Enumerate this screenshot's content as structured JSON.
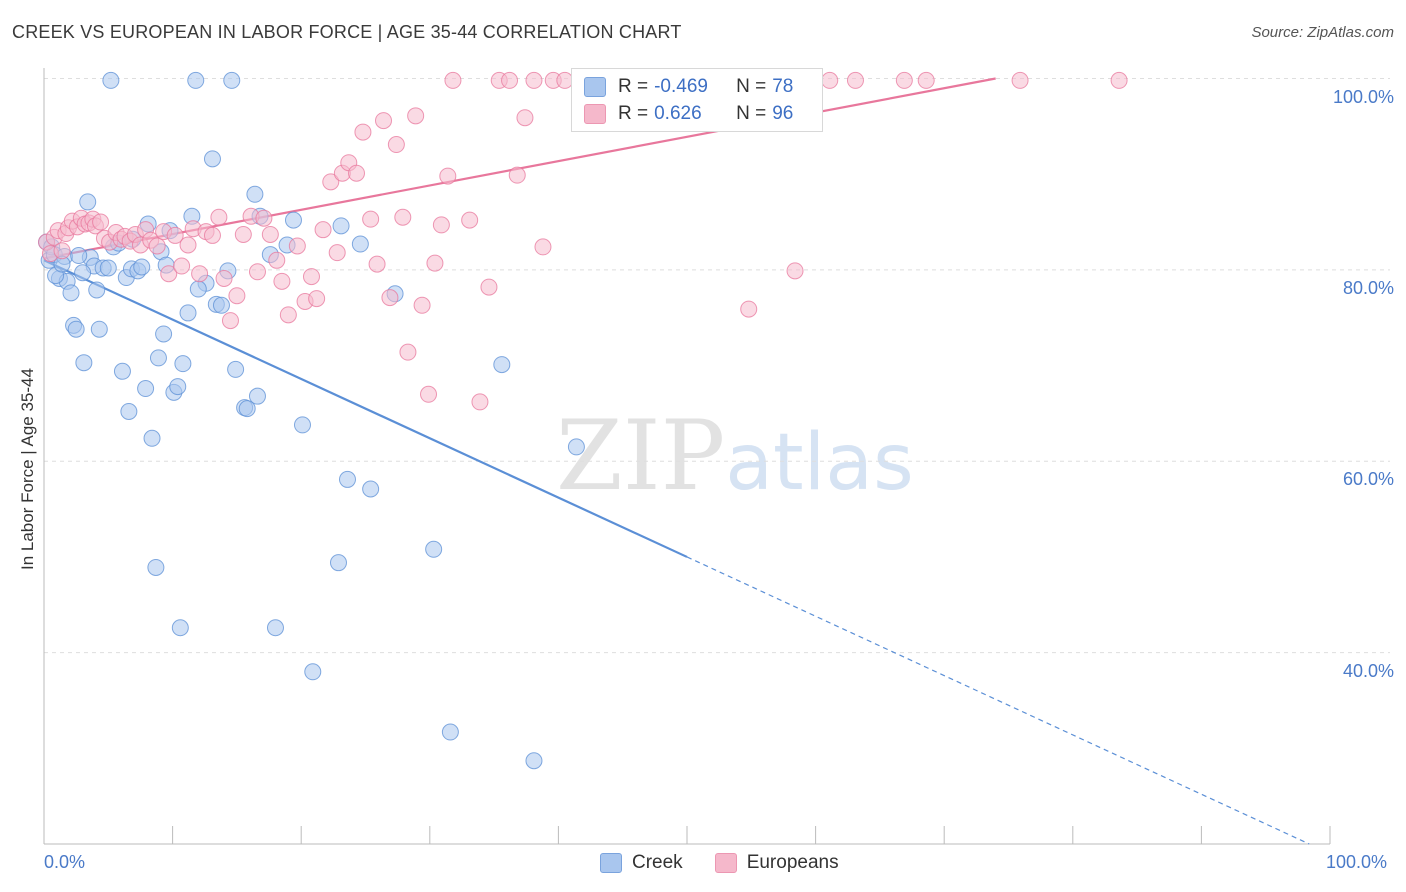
{
  "header": {
    "title": "CREEK VS EUROPEAN IN LABOR FORCE | AGE 35-44 CORRELATION CHART",
    "source": "Source: ZipAtlas.com"
  },
  "watermark": {
    "zip": "ZIP",
    "atlas": "atlas"
  },
  "legend": {
    "creek": {
      "r_label": "R =",
      "r_value": "-0.469",
      "n_label": "N =",
      "n_value": "78",
      "color": "#a9c6ee"
    },
    "europeans": {
      "r_label": "R =",
      "r_value": "0.626",
      "n_label": "N =",
      "n_value": "96",
      "color": "#f5b8cb"
    }
  },
  "bottom_legend": {
    "creek": "Creek",
    "europeans": "Europeans"
  },
  "chart_data": {
    "type": "scatter",
    "ylabel": "In Labor Force | Age 35-44",
    "xlim": [
      0,
      100
    ],
    "ylim": [
      20,
      100
    ],
    "y_ticks": [
      "100.0%",
      "80.0%",
      "60.0%",
      "40.0%"
    ],
    "y_tick_values": [
      100,
      80,
      60,
      40
    ],
    "x_tick_labels": [
      "0.0%",
      "100.0%"
    ],
    "grid": true,
    "series": [
      {
        "name": "Creek",
        "color": "#5b8fd6",
        "fill": "#aac7ef",
        "trend": {
          "x0": 0,
          "y0": 81.0,
          "x1": 100,
          "y1": 19.0,
          "solid_until": 50
        },
        "points": [
          [
            0.2,
            82.9
          ],
          [
            0.4,
            81.0
          ],
          [
            0.6,
            82.4
          ],
          [
            0.8,
            81.6
          ],
          [
            1.2,
            79.1
          ],
          [
            1.6,
            81.4
          ],
          [
            1.8,
            78.8
          ],
          [
            2.1,
            77.6
          ],
          [
            2.3,
            74.2
          ],
          [
            2.5,
            73.8
          ],
          [
            3.1,
            70.3
          ],
          [
            3.4,
            87.1
          ],
          [
            3.6,
            81.3
          ],
          [
            3.9,
            80.4
          ],
          [
            4.1,
            77.9
          ],
          [
            4.3,
            73.8
          ],
          [
            4.6,
            80.2
          ],
          [
            5.2,
            99.8
          ],
          [
            5.4,
            82.4
          ],
          [
            5.8,
            82.8
          ],
          [
            6.1,
            69.4
          ],
          [
            6.4,
            79.2
          ],
          [
            6.6,
            65.2
          ],
          [
            6.8,
            80.1
          ],
          [
            7.3,
            79.9
          ],
          [
            7.6,
            80.3
          ],
          [
            7.9,
            67.6
          ],
          [
            8.1,
            84.8
          ],
          [
            8.4,
            62.4
          ],
          [
            8.7,
            48.9
          ],
          [
            8.9,
            70.8
          ],
          [
            9.1,
            81.9
          ],
          [
            9.3,
            73.3
          ],
          [
            9.8,
            84.1
          ],
          [
            10.1,
            67.2
          ],
          [
            10.4,
            67.8
          ],
          [
            10.6,
            42.6
          ],
          [
            10.8,
            70.2
          ],
          [
            11.2,
            75.5
          ],
          [
            11.5,
            85.6
          ],
          [
            11.8,
            99.8
          ],
          [
            12.6,
            78.6
          ],
          [
            13.1,
            91.6
          ],
          [
            13.4,
            76.4
          ],
          [
            13.8,
            76.3
          ],
          [
            14.3,
            79.9
          ],
          [
            14.6,
            99.8
          ],
          [
            14.9,
            69.6
          ],
          [
            15.6,
            65.6
          ],
          [
            15.8,
            65.5
          ],
          [
            16.4,
            87.9
          ],
          [
            16.6,
            66.8
          ],
          [
            16.8,
            85.6
          ],
          [
            17.6,
            81.6
          ],
          [
            18.0,
            42.6
          ],
          [
            18.9,
            82.6
          ],
          [
            19.4,
            85.2
          ],
          [
            20.1,
            63.8
          ],
          [
            20.9,
            38.0
          ],
          [
            22.9,
            49.4
          ],
          [
            23.1,
            84.6
          ],
          [
            23.6,
            58.1
          ],
          [
            24.6,
            82.7
          ],
          [
            25.4,
            57.1
          ],
          [
            30.3,
            50.8
          ],
          [
            31.6,
            31.7
          ],
          [
            35.6,
            70.1
          ],
          [
            38.1,
            28.7
          ],
          [
            41.4,
            61.5
          ],
          [
            27.3,
            77.5
          ],
          [
            0.9,
            79.4
          ],
          [
            3.0,
            79.7
          ],
          [
            5.0,
            80.2
          ],
          [
            6.9,
            83.2
          ],
          [
            9.5,
            80.5
          ],
          [
            1.4,
            80.6
          ],
          [
            2.7,
            81.5
          ],
          [
            12.0,
            78.0
          ]
        ]
      },
      {
        "name": "Europeans",
        "color": "#e8779c",
        "fill": "#f6bccd",
        "trend": {
          "x0": 0,
          "y0": 81.2,
          "x1": 74,
          "y1": 100.0,
          "solid_until": 74
        },
        "points": [
          [
            0.2,
            82.9
          ],
          [
            0.5,
            81.7
          ],
          [
            0.8,
            83.4
          ],
          [
            1.1,
            84.1
          ],
          [
            1.4,
            82.0
          ],
          [
            1.7,
            83.8
          ],
          [
            1.9,
            84.4
          ],
          [
            2.2,
            85.1
          ],
          [
            2.6,
            84.5
          ],
          [
            2.9,
            85.4
          ],
          [
            3.2,
            84.8
          ],
          [
            3.5,
            84.9
          ],
          [
            3.8,
            85.3
          ],
          [
            4.0,
            84.6
          ],
          [
            4.4,
            85.0
          ],
          [
            4.7,
            83.3
          ],
          [
            5.1,
            82.9
          ],
          [
            5.6,
            83.9
          ],
          [
            6.0,
            83.2
          ],
          [
            6.3,
            83.5
          ],
          [
            6.7,
            83.0
          ],
          [
            7.1,
            83.7
          ],
          [
            7.5,
            82.6
          ],
          [
            7.9,
            84.2
          ],
          [
            8.3,
            83.1
          ],
          [
            8.8,
            82.5
          ],
          [
            9.3,
            84.0
          ],
          [
            9.7,
            79.6
          ],
          [
            10.2,
            83.6
          ],
          [
            10.7,
            80.4
          ],
          [
            11.2,
            82.6
          ],
          [
            11.6,
            84.3
          ],
          [
            12.1,
            79.6
          ],
          [
            12.6,
            84.0
          ],
          [
            13.1,
            83.6
          ],
          [
            13.6,
            85.5
          ],
          [
            14.0,
            79.1
          ],
          [
            14.5,
            74.7
          ],
          [
            15.0,
            77.3
          ],
          [
            15.5,
            83.7
          ],
          [
            16.1,
            85.6
          ],
          [
            16.6,
            79.8
          ],
          [
            17.1,
            85.4
          ],
          [
            17.6,
            83.7
          ],
          [
            18.1,
            81.0
          ],
          [
            18.5,
            78.8
          ],
          [
            19.0,
            75.3
          ],
          [
            19.7,
            82.5
          ],
          [
            20.3,
            76.7
          ],
          [
            20.8,
            79.3
          ],
          [
            21.2,
            77.0
          ],
          [
            21.7,
            84.2
          ],
          [
            22.3,
            89.2
          ],
          [
            22.8,
            81.8
          ],
          [
            23.2,
            90.1
          ],
          [
            23.7,
            91.2
          ],
          [
            24.3,
            90.1
          ],
          [
            24.8,
            94.4
          ],
          [
            25.4,
            85.3
          ],
          [
            25.9,
            80.6
          ],
          [
            26.4,
            95.6
          ],
          [
            26.9,
            77.1
          ],
          [
            27.4,
            93.1
          ],
          [
            27.9,
            85.5
          ],
          [
            28.3,
            71.4
          ],
          [
            28.9,
            96.1
          ],
          [
            29.4,
            76.3
          ],
          [
            29.9,
            67.0
          ],
          [
            30.4,
            80.7
          ],
          [
            30.9,
            84.7
          ],
          [
            31.4,
            89.8
          ],
          [
            31.8,
            99.8
          ],
          [
            33.1,
            85.2
          ],
          [
            33.9,
            66.2
          ],
          [
            34.6,
            78.2
          ],
          [
            35.4,
            99.8
          ],
          [
            36.2,
            99.8
          ],
          [
            36.8,
            89.9
          ],
          [
            37.4,
            95.9
          ],
          [
            38.1,
            99.8
          ],
          [
            38.8,
            82.4
          ],
          [
            39.6,
            99.8
          ],
          [
            40.5,
            99.8
          ],
          [
            42.1,
            99.8
          ],
          [
            43.6,
            99.8
          ],
          [
            45.5,
            99.8
          ],
          [
            47.6,
            99.8
          ],
          [
            51.3,
            99.8
          ],
          [
            54.8,
            75.9
          ],
          [
            58.4,
            79.9
          ],
          [
            61.1,
            99.8
          ],
          [
            63.1,
            99.8
          ],
          [
            66.9,
            99.8
          ],
          [
            68.6,
            99.8
          ],
          [
            75.9,
            99.8
          ],
          [
            83.6,
            99.8
          ]
        ]
      }
    ]
  }
}
